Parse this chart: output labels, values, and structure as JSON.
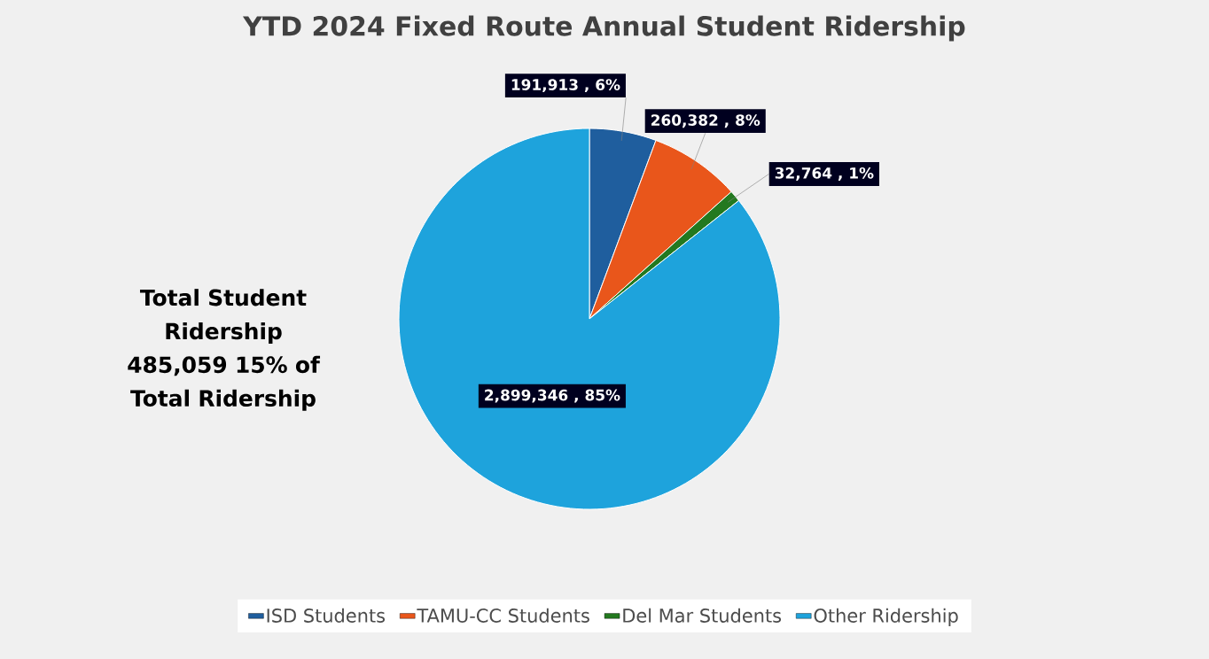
{
  "chart_data": {
    "type": "pie",
    "title": "YTD 2024 Fixed Route Annual Student Ridership",
    "categories": [
      "ISD Students",
      "TAMU-CC Students",
      "Del Mar Students",
      "Other Ridership"
    ],
    "values": [
      191913,
      260382,
      32764,
      2899346
    ],
    "colors": [
      "#1f5e9e",
      "#e9561b",
      "#23791f",
      "#1ea3dc"
    ],
    "value_labels": [
      "191,913 , 6%",
      "260,382 , 8%",
      "32,764 , 1%",
      "2,899,346 , 85%"
    ],
    "annotations": [
      "Total Student Ridership 485,059 15% of Total Ridership"
    ],
    "legend": "bottom"
  }
}
